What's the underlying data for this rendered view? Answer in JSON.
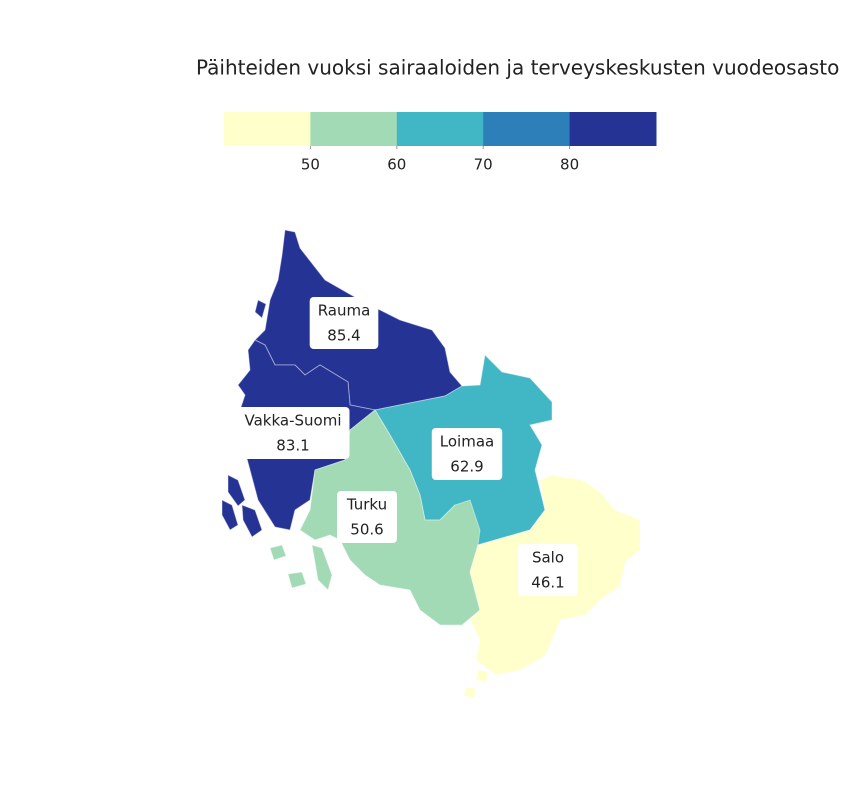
{
  "chart_data": {
    "type": "choropleth",
    "title": "Päihteiden vuoksi sairaaloiden ja terveyskeskusten vuodeosasto",
    "legend_ticks": [
      50,
      60,
      70,
      80
    ],
    "colors": [
      "#ffffcc",
      "#a1dab4",
      "#41b6c4",
      "#2c7fb8",
      "#253494"
    ],
    "regions": [
      {
        "name": "Rauma",
        "value": 85.4
      },
      {
        "name": "Vakka-Suomi",
        "value": 83.1
      },
      {
        "name": "Loimaa",
        "value": 62.9
      },
      {
        "name": "Turku",
        "value": 50.6
      },
      {
        "name": "Salo",
        "value": 46.1
      }
    ]
  }
}
